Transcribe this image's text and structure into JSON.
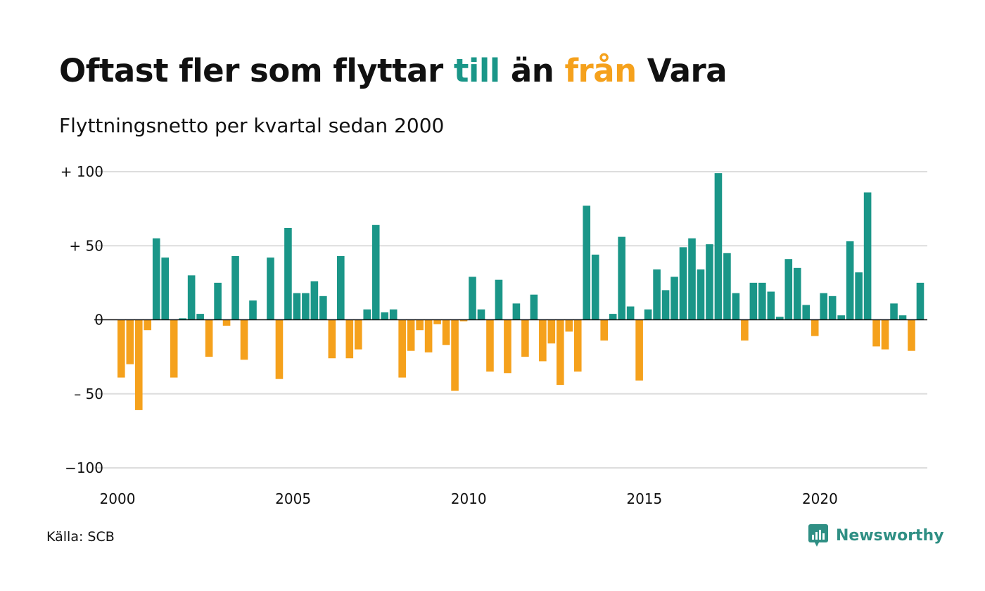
{
  "header": {
    "title_part1": "Oftast fler som flyttar ",
    "title_till": "till",
    "title_part2": " än ",
    "title_fran": "från",
    "title_part3": " Vara",
    "subtitle": "Flyttningsnetto per kvartal sedan 2000"
  },
  "footer": {
    "source": "Källa: SCB",
    "brand": "Newsworthy"
  },
  "colors": {
    "positive": "#1a9688",
    "negative": "#f5a11c",
    "grid": "#dddddd",
    "zero_line": "#111111",
    "brand": "#2f8f84"
  },
  "chart_data": {
    "type": "bar",
    "title": "Oftast fler som flyttar till än från Vara",
    "subtitle": "Flyttningsnetto per kvartal sedan 2000",
    "xlabel": "",
    "ylabel": "",
    "ylim": [
      -100,
      100
    ],
    "grid": true,
    "y_ticks": [
      {
        "value": 100,
        "label": "+ 100"
      },
      {
        "value": 50,
        "label": "+  50"
      },
      {
        "value": 0,
        "label": "0"
      },
      {
        "value": -50,
        "label": "– 50"
      },
      {
        "value": -100,
        "label": "−100"
      }
    ],
    "x_ticks": [
      {
        "year": 2000,
        "label": "2000"
      },
      {
        "year": 2005,
        "label": "2005"
      },
      {
        "year": 2010,
        "label": "2010"
      },
      {
        "year": 2015,
        "label": "2015"
      },
      {
        "year": 2020,
        "label": "2020"
      }
    ],
    "start_year": 2000,
    "start_quarter": 1,
    "values": [
      -39,
      -30,
      -61,
      -7,
      55,
      42,
      -39,
      1,
      30,
      4,
      -25,
      25,
      -4,
      43,
      -27,
      13,
      0,
      42,
      -40,
      62,
      18,
      18,
      26,
      16,
      -26,
      43,
      -26,
      -20,
      7,
      64,
      5,
      7,
      -39,
      -21,
      -7,
      -22,
      -3,
      -17,
      -48,
      -1,
      29,
      7,
      -35,
      27,
      -36,
      11,
      -25,
      17,
      -28,
      -16,
      -44,
      -8,
      -35,
      77,
      44,
      -14,
      4,
      56,
      9,
      -41,
      7,
      34,
      20,
      29,
      49,
      55,
      34,
      51,
      99,
      45,
      18,
      -14,
      25,
      25,
      19,
      2,
      41,
      35,
      10,
      -11,
      18,
      16,
      3,
      53,
      32,
      86,
      -18,
      -20,
      11,
      3,
      -21,
      25
    ]
  }
}
